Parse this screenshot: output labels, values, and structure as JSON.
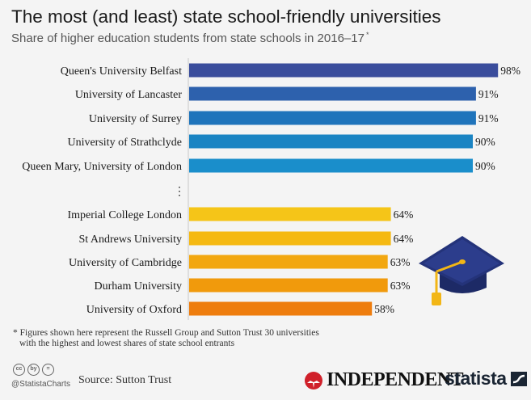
{
  "chart_data": {
    "type": "bar",
    "orientation": "horizontal",
    "title": "The most (and least) state school-friendly universities",
    "subtitle": "Share of higher education students from state schools in 2016–17",
    "subtitle_marker": "*",
    "categories": [
      "Queen's University Belfast",
      "University of Lancaster",
      "University of Surrey",
      "University of Strathclyde",
      "Queen Mary, University of London",
      "Imperial College London",
      "St Andrews University",
      "University of Cambridge",
      "Durham University",
      "University of Oxford"
    ],
    "values": [
      98,
      91,
      91,
      90,
      90,
      64,
      64,
      63,
      63,
      58
    ],
    "value_labels": [
      "98%",
      "91%",
      "91%",
      "90%",
      "90%",
      "64%",
      "64%",
      "63%",
      "63%",
      "58%"
    ],
    "colors": [
      "#3a4d9c",
      "#2d61ad",
      "#1f74bb",
      "#1a84c3",
      "#1a8ecb",
      "#f5c518",
      "#f5b912",
      "#f2a710",
      "#f19a0c",
      "#ee7d0e"
    ],
    "gap_marker": "⋮",
    "xlim": [
      0,
      100
    ],
    "grid": false,
    "legend": "none"
  },
  "footnote": {
    "line1": "* Figures shown here represent the Russell Group and Sutton Trust 30 universities",
    "line2": "with the highest and lowest shares of state school entrants"
  },
  "footer": {
    "cc_icons": [
      "cc",
      "by",
      "="
    ],
    "handle": "@StatistaCharts",
    "source": "Source: Sutton Trust",
    "independent_logo": "INDEPENDENT",
    "statista_logo": "statista"
  }
}
